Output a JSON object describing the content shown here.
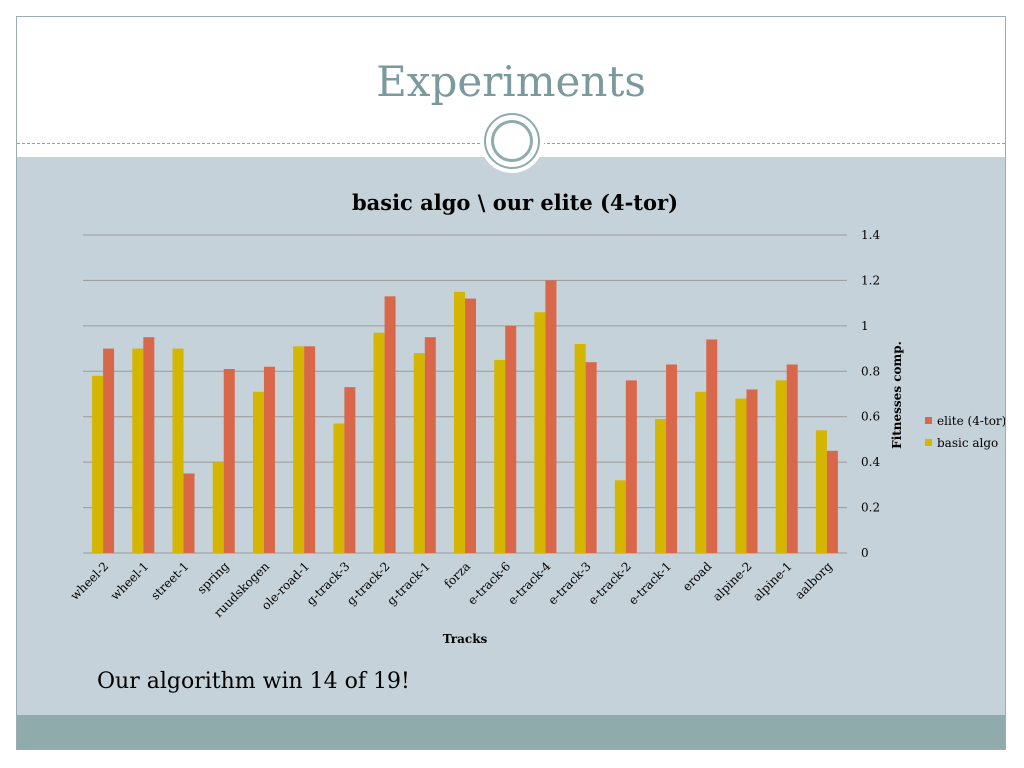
{
  "slide": {
    "title": "Experiments",
    "caption": "Our algorithm win 14 of 19!"
  },
  "colors": {
    "title": "#7a9a9b",
    "content_bg": "#c6d2d9",
    "footer": "#8fabac",
    "elite": "#d9674a",
    "basic": "#d4b500",
    "gridline": "#9a9a9a"
  },
  "chart_data": {
    "type": "bar",
    "title": "basic algo \\ our elite (4-tor)",
    "xlabel": "Tracks",
    "ylabel": "Fitnesses comp.",
    "ylim": [
      0,
      1.4
    ],
    "yticks": [
      "0",
      "0.2",
      "0.4",
      "0.6",
      "0.8",
      "1",
      "1.2",
      "1.4"
    ],
    "y_axis_side": "right",
    "grid": true,
    "legend_position": "right",
    "categories": [
      "wheel-2",
      "wheel-1",
      "street-1",
      "spring",
      "ruudskogen",
      "ole-road-1",
      "g-track-3",
      "g-track-2",
      "g-track-1",
      "forza",
      "e-track-6",
      "e-track-4",
      "e-track-3",
      "e-track-2",
      "e-track-1",
      "eroad",
      "alpine-2",
      "alpine-1",
      "aalborg"
    ],
    "series": [
      {
        "name": "basic algo",
        "color": "#d4b500",
        "values": [
          0.78,
          0.9,
          0.9,
          0.4,
          0.71,
          0.91,
          0.57,
          0.97,
          0.88,
          1.15,
          0.85,
          1.06,
          0.92,
          0.32,
          0.59,
          0.71,
          0.68,
          0.76,
          0.54
        ]
      },
      {
        "name": "elite (4-tor)",
        "color": "#d9674a",
        "values": [
          0.9,
          0.95,
          0.35,
          0.81,
          0.82,
          0.91,
          0.73,
          1.13,
          0.95,
          1.12,
          1.0,
          1.2,
          0.84,
          0.76,
          0.83,
          0.94,
          0.72,
          0.83,
          0.45
        ]
      }
    ],
    "legend": [
      "elite (4-tor)",
      "basic algo"
    ]
  }
}
